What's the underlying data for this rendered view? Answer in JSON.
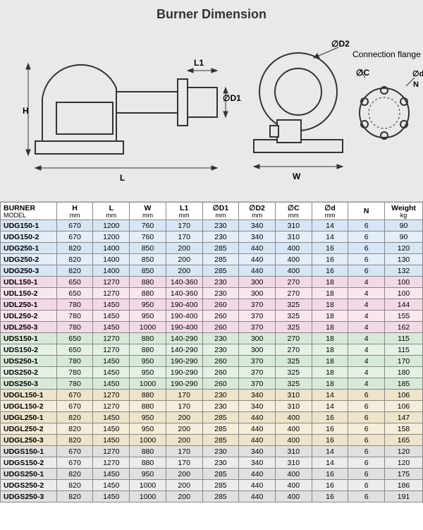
{
  "title": "Burner Dimension",
  "flange_label": "Connection flange",
  "diagram_labels": {
    "H": "H",
    "L": "L",
    "L1": "L1",
    "D1": "∅D1",
    "D2": "∅D2",
    "W": "W",
    "C": "∅C",
    "d": "∅d",
    "N": "N"
  },
  "columns": [
    {
      "key": "model",
      "label": "BURNER",
      "sub": "MODEL",
      "cls": "col-model",
      "hcls": "model-col"
    },
    {
      "key": "H",
      "label": "H",
      "sub": "mm",
      "cls": "col-num"
    },
    {
      "key": "L",
      "label": "L",
      "sub": "mm",
      "cls": "col-num"
    },
    {
      "key": "W",
      "label": "W",
      "sub": "mm",
      "cls": "col-num"
    },
    {
      "key": "L1",
      "label": "L1",
      "sub": "mm",
      "cls": "col-num"
    },
    {
      "key": "D1",
      "label": "∅D1",
      "sub": "mm",
      "cls": "col-num"
    },
    {
      "key": "D2",
      "label": "∅D2",
      "sub": "mm",
      "cls": "col-num"
    },
    {
      "key": "C",
      "label": "∅C",
      "sub": "mm",
      "cls": "col-num"
    },
    {
      "key": "d",
      "label": "∅d",
      "sub": "mm",
      "cls": "col-num"
    },
    {
      "key": "N",
      "label": "N",
      "sub": "",
      "cls": "col-n"
    },
    {
      "key": "Wt",
      "label": "Weight",
      "sub": "kg",
      "cls": "col-w"
    }
  ],
  "rows": [
    {
      "g": 0,
      "model": "UDG150-1",
      "H": "670",
      "L": "1200",
      "W": "760",
      "L1": "170",
      "D1": "230",
      "D2": "340",
      "C": "310",
      "d": "14",
      "N": "6",
      "Wt": "90"
    },
    {
      "g": 0,
      "model": "UDG150-2",
      "H": "670",
      "L": "1200",
      "W": "760",
      "L1": "170",
      "D1": "230",
      "D2": "340",
      "C": "310",
      "d": "14",
      "N": "6",
      "Wt": "90"
    },
    {
      "g": 0,
      "model": "UDG250-1",
      "H": "820",
      "L": "1400",
      "W": "850",
      "L1": "200",
      "D1": "285",
      "D2": "440",
      "C": "400",
      "d": "16",
      "N": "6",
      "Wt": "120"
    },
    {
      "g": 0,
      "model": "UDG250-2",
      "H": "820",
      "L": "1400",
      "W": "850",
      "L1": "200",
      "D1": "285",
      "D2": "440",
      "C": "400",
      "d": "16",
      "N": "6",
      "Wt": "130"
    },
    {
      "g": 0,
      "model": "UDG250-3",
      "H": "820",
      "L": "1400",
      "W": "850",
      "L1": "200",
      "D1": "285",
      "D2": "440",
      "C": "400",
      "d": "16",
      "N": "6",
      "Wt": "132"
    },
    {
      "g": 1,
      "model": "UDL150-1",
      "H": "650",
      "L": "1270",
      "W": "880",
      "L1": "140-360",
      "D1": "230",
      "D2": "300",
      "C": "270",
      "d": "18",
      "N": "4",
      "Wt": "100"
    },
    {
      "g": 1,
      "model": "UDL150-2",
      "H": "650",
      "L": "1270",
      "W": "880",
      "L1": "140-360",
      "D1": "230",
      "D2": "300",
      "C": "270",
      "d": "18",
      "N": "4",
      "Wt": "100"
    },
    {
      "g": 1,
      "model": "UDL250-1",
      "H": "780",
      "L": "1450",
      "W": "950",
      "L1": "190-400",
      "D1": "260",
      "D2": "370",
      "C": "325",
      "d": "18",
      "N": "4",
      "Wt": "144"
    },
    {
      "g": 1,
      "model": "UDL250-2",
      "H": "780",
      "L": "1450",
      "W": "950",
      "L1": "190-400",
      "D1": "260",
      "D2": "370",
      "C": "325",
      "d": "18",
      "N": "4",
      "Wt": "155"
    },
    {
      "g": 1,
      "model": "UDL250-3",
      "H": "780",
      "L": "1450",
      "W": "1000",
      "L1": "190-400",
      "D1": "260",
      "D2": "370",
      "C": "325",
      "d": "18",
      "N": "4",
      "Wt": "162"
    },
    {
      "g": 2,
      "model": "UDS150-1",
      "H": "650",
      "L": "1270",
      "W": "880",
      "L1": "140-290",
      "D1": "230",
      "D2": "300",
      "C": "270",
      "d": "18",
      "N": "4",
      "Wt": "115"
    },
    {
      "g": 2,
      "model": "UDS150-2",
      "H": "650",
      "L": "1270",
      "W": "880",
      "L1": "140-290",
      "D1": "230",
      "D2": "300",
      "C": "270",
      "d": "18",
      "N": "4",
      "Wt": "115"
    },
    {
      "g": 2,
      "model": "UDS250-1",
      "H": "780",
      "L": "1450",
      "W": "950",
      "L1": "190-290",
      "D1": "260",
      "D2": "370",
      "C": "325",
      "d": "18",
      "N": "4",
      "Wt": "170"
    },
    {
      "g": 2,
      "model": "UDS250-2",
      "H": "780",
      "L": "1450",
      "W": "950",
      "L1": "190-290",
      "D1": "260",
      "D2": "370",
      "C": "325",
      "d": "18",
      "N": "4",
      "Wt": "180"
    },
    {
      "g": 2,
      "model": "UDS250-3",
      "H": "780",
      "L": "1450",
      "W": "1000",
      "L1": "190-290",
      "D1": "260",
      "D2": "370",
      "C": "325",
      "d": "18",
      "N": "4",
      "Wt": "185"
    },
    {
      "g": 3,
      "model": "UDGL150-1",
      "H": "670",
      "L": "1270",
      "W": "880",
      "L1": "170",
      "D1": "230",
      "D2": "340",
      "C": "310",
      "d": "14",
      "N": "6",
      "Wt": "106"
    },
    {
      "g": 3,
      "model": "UDGL150-2",
      "H": "670",
      "L": "1270",
      "W": "880",
      "L1": "170",
      "D1": "230",
      "D2": "340",
      "C": "310",
      "d": "14",
      "N": "6",
      "Wt": "106"
    },
    {
      "g": 3,
      "model": "UDGL250-1",
      "H": "820",
      "L": "1450",
      "W": "950",
      "L1": "200",
      "D1": "285",
      "D2": "440",
      "C": "400",
      "d": "16",
      "N": "6",
      "Wt": "147"
    },
    {
      "g": 3,
      "model": "UDGL250-2",
      "H": "820",
      "L": "1450",
      "W": "950",
      "L1": "200",
      "D1": "285",
      "D2": "440",
      "C": "400",
      "d": "16",
      "N": "6",
      "Wt": "158"
    },
    {
      "g": 3,
      "model": "UDGL250-3",
      "H": "820",
      "L": "1450",
      "W": "1000",
      "L1": "200",
      "D1": "285",
      "D2": "440",
      "C": "400",
      "d": "16",
      "N": "6",
      "Wt": "165"
    },
    {
      "g": 4,
      "model": "UDGS150-1",
      "H": "670",
      "L": "1270",
      "W": "880",
      "L1": "170",
      "D1": "230",
      "D2": "340",
      "C": "310",
      "d": "14",
      "N": "6",
      "Wt": "120"
    },
    {
      "g": 4,
      "model": "UDGS150-2",
      "H": "670",
      "L": "1270",
      "W": "880",
      "L1": "170",
      "D1": "230",
      "D2": "340",
      "C": "310",
      "d": "14",
      "N": "6",
      "Wt": "120"
    },
    {
      "g": 4,
      "model": "UDGS250-1",
      "H": "820",
      "L": "1450",
      "W": "950",
      "L1": "200",
      "D1": "285",
      "D2": "440",
      "C": "400",
      "d": "16",
      "N": "6",
      "Wt": "175"
    },
    {
      "g": 4,
      "model": "UDGS250-2",
      "H": "820",
      "L": "1450",
      "W": "1000",
      "L1": "200",
      "D1": "285",
      "D2": "440",
      "C": "400",
      "d": "16",
      "N": "6",
      "Wt": "186"
    },
    {
      "g": 4,
      "model": "UDGS250-3",
      "H": "820",
      "L": "1450",
      "W": "1000",
      "L1": "200",
      "D1": "285",
      "D2": "440",
      "C": "400",
      "d": "16",
      "N": "6",
      "Wt": "191"
    }
  ]
}
